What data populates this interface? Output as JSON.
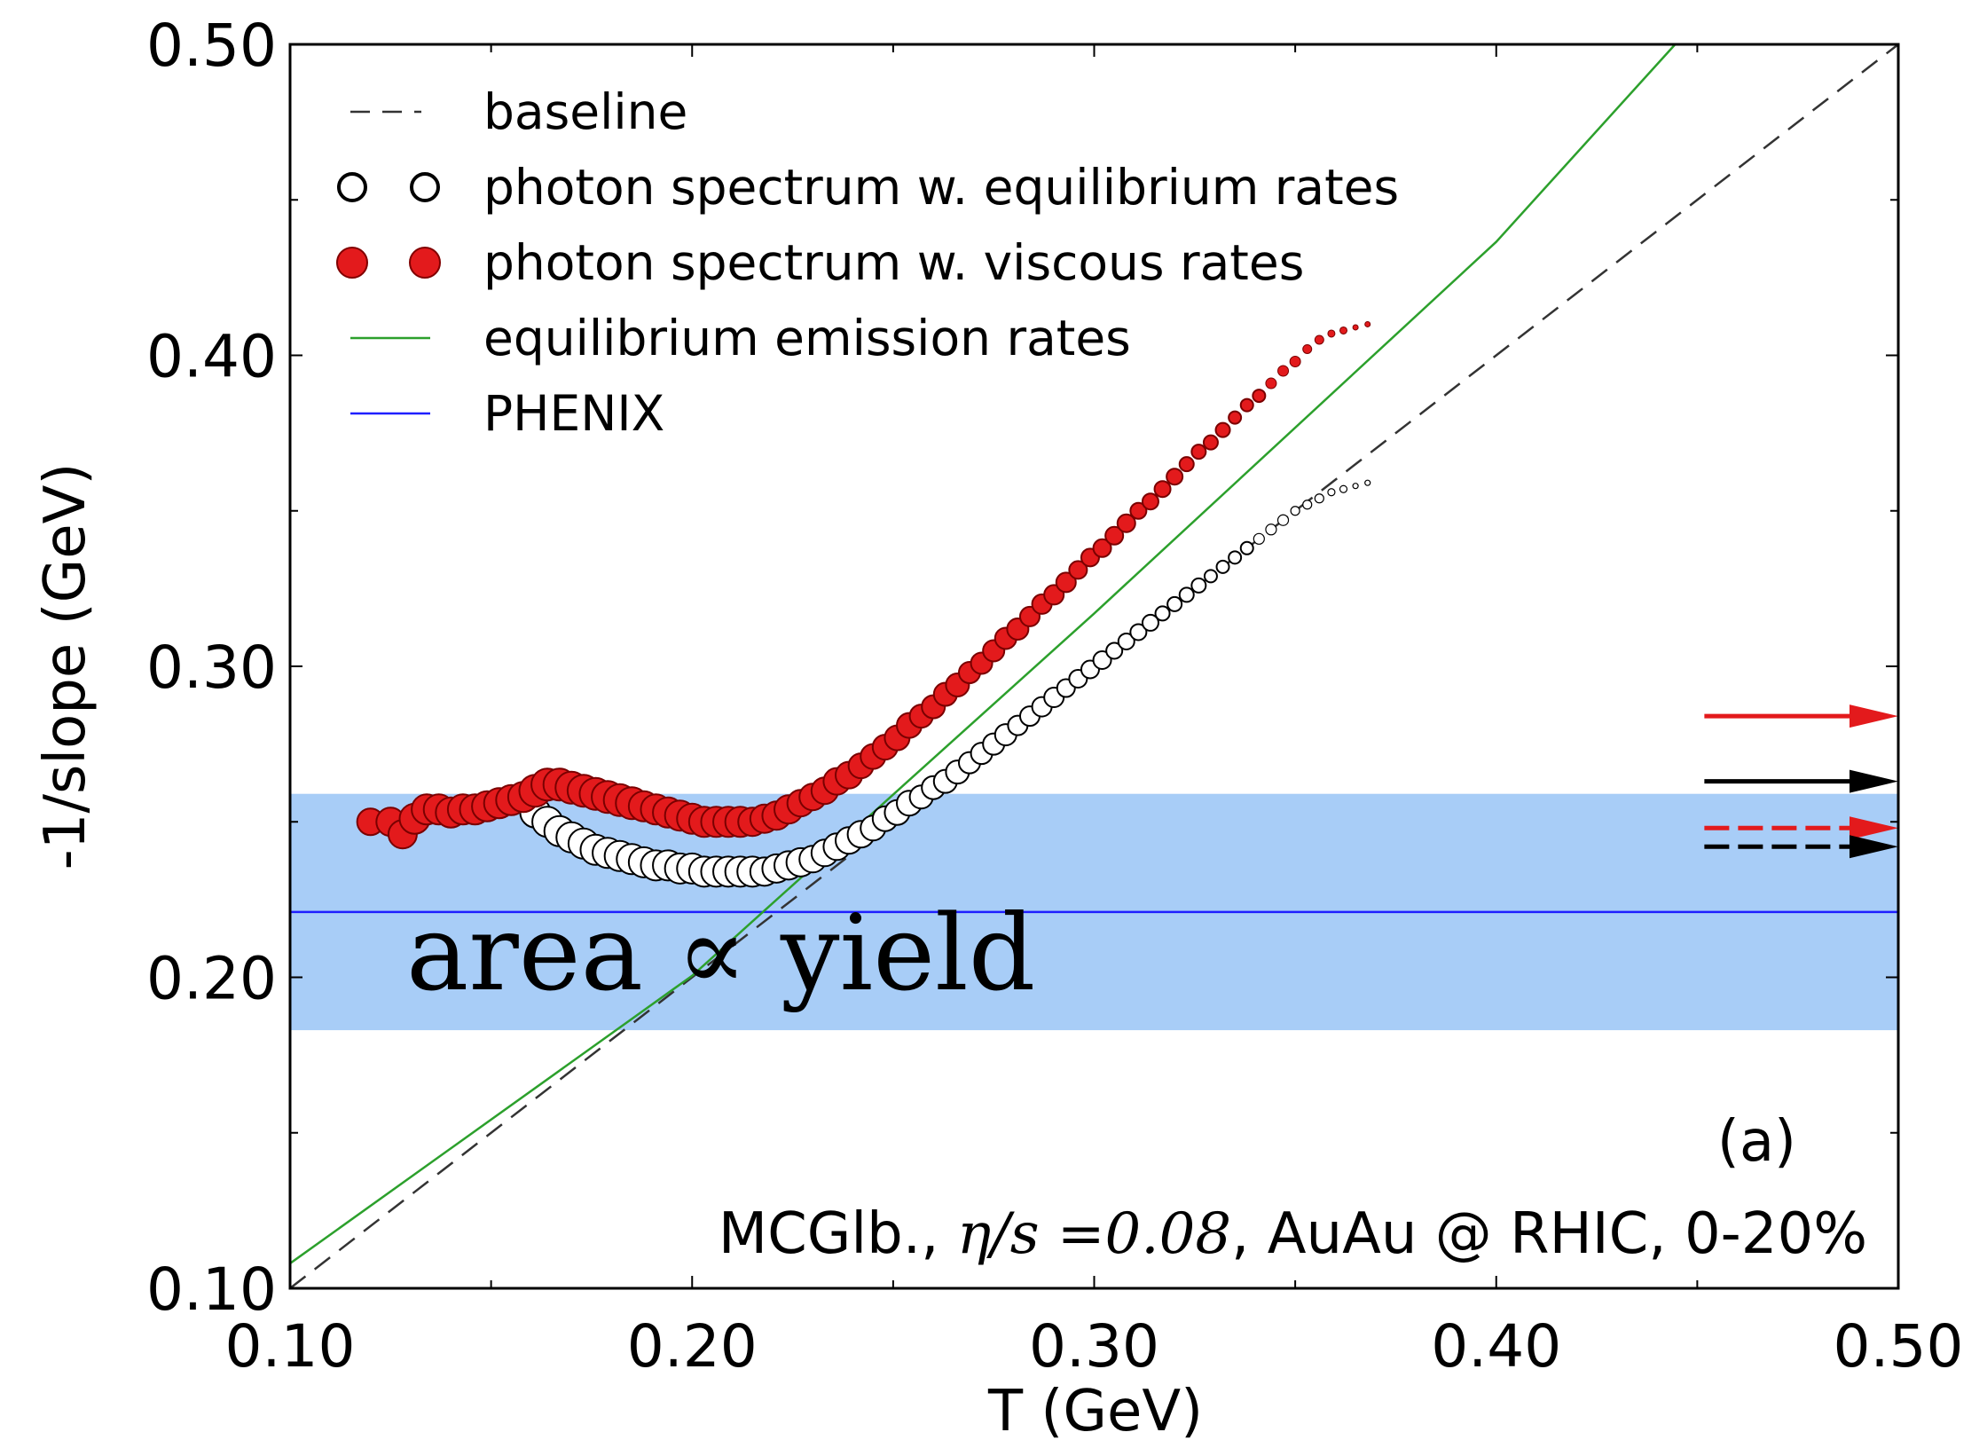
{
  "chart_data": {
    "type": "scatter",
    "xlabel": "T (GeV)",
    "ylabel": "-1/slope (GeV)",
    "xlim": [
      0.1,
      0.5
    ],
    "ylim": [
      0.1,
      0.5
    ],
    "x_ticks": [
      "0.10",
      "0.20",
      "0.30",
      "0.40",
      "0.50"
    ],
    "y_ticks": [
      "0.10",
      "0.20",
      "0.30",
      "0.40",
      "0.50"
    ],
    "annotation_text": "area ∝ yield",
    "panel_label": "(a)",
    "caption": {
      "prefix": "MCGlb., ",
      "math": "η/s =0.08",
      "suffix": ", AuAu @ RHIC, 0-20%"
    },
    "legend": {
      "position": "top-left",
      "entries": [
        {
          "label": "baseline",
          "style": "dashed-line",
          "color": "#000000"
        },
        {
          "label": "photon spectrum w. equilibrium rates",
          "style": "open-circles",
          "color": "#000000"
        },
        {
          "label": "photon spectrum w. viscous rates",
          "style": "filled-circles",
          "color": "#e31a1c"
        },
        {
          "label": "equilibrium emission rates",
          "style": "line",
          "color": "#2ca02c"
        },
        {
          "label": "PHENIX",
          "style": "line",
          "color": "#1f1fff"
        }
      ]
    },
    "phenix": {
      "value": 0.221,
      "band": [
        0.183,
        0.259
      ],
      "band_color": "#a8cdf7",
      "line_color": "#1f1fff"
    },
    "baseline": {
      "x": [
        0.1,
        0.5
      ],
      "y": [
        0.1,
        0.5
      ]
    },
    "equilibrium_emission_rates": {
      "x": [
        0.1,
        0.2,
        0.3,
        0.4,
        0.4445
      ],
      "y": [
        0.108,
        0.2005,
        0.317,
        0.4365,
        0.5
      ]
    },
    "series": [
      {
        "name": "photon spectrum w. viscous rates",
        "marker": "filled-circle",
        "color": "#e31a1c",
        "x": [
          0.12,
          0.125,
          0.128,
          0.131,
          0.134,
          0.137,
          0.14,
          0.143,
          0.146,
          0.149,
          0.152,
          0.155,
          0.158,
          0.161,
          0.164,
          0.167,
          0.17,
          0.173,
          0.176,
          0.179,
          0.182,
          0.185,
          0.188,
          0.191,
          0.194,
          0.197,
          0.2,
          0.203,
          0.206,
          0.209,
          0.212,
          0.215,
          0.218,
          0.221,
          0.224,
          0.227,
          0.23,
          0.233,
          0.236,
          0.239,
          0.242,
          0.245,
          0.248,
          0.251,
          0.254,
          0.257,
          0.26,
          0.263,
          0.266,
          0.269,
          0.272,
          0.275,
          0.278,
          0.281,
          0.284,
          0.287,
          0.29,
          0.293,
          0.296,
          0.299,
          0.302,
          0.305,
          0.308,
          0.311,
          0.314,
          0.317,
          0.32,
          0.323,
          0.326,
          0.329,
          0.332,
          0.335,
          0.338,
          0.341,
          0.344,
          0.347,
          0.35,
          0.353,
          0.356,
          0.359,
          0.362,
          0.365,
          0.368
        ],
        "y": [
          0.25,
          0.25,
          0.246,
          0.251,
          0.254,
          0.254,
          0.253,
          0.254,
          0.254,
          0.255,
          0.256,
          0.257,
          0.258,
          0.26,
          0.262,
          0.262,
          0.261,
          0.26,
          0.259,
          0.258,
          0.257,
          0.256,
          0.255,
          0.254,
          0.253,
          0.252,
          0.251,
          0.25,
          0.25,
          0.25,
          0.25,
          0.25,
          0.251,
          0.252,
          0.254,
          0.256,
          0.258,
          0.26,
          0.263,
          0.265,
          0.268,
          0.271,
          0.274,
          0.277,
          0.281,
          0.284,
          0.287,
          0.291,
          0.294,
          0.298,
          0.301,
          0.305,
          0.309,
          0.312,
          0.316,
          0.32,
          0.323,
          0.327,
          0.331,
          0.335,
          0.338,
          0.342,
          0.346,
          0.35,
          0.353,
          0.357,
          0.361,
          0.365,
          0.369,
          0.372,
          0.376,
          0.38,
          0.384,
          0.387,
          0.391,
          0.395,
          0.398,
          0.402,
          0.405,
          0.407,
          0.408,
          0.409,
          0.41
        ],
        "sizes": [
          15,
          16,
          16,
          17,
          17,
          17,
          17,
          17,
          17,
          17,
          17,
          17,
          17,
          18,
          18,
          18,
          18,
          18,
          18,
          18,
          18,
          18,
          17,
          17,
          17,
          17,
          17,
          17,
          17,
          17,
          17,
          16,
          16,
          16,
          16,
          15,
          15,
          15,
          15,
          15,
          14,
          14,
          14,
          14,
          14,
          13,
          13,
          13,
          13,
          12,
          12,
          12,
          12,
          12,
          11,
          11,
          11,
          11,
          10,
          10,
          10,
          10,
          10,
          9,
          9,
          9,
          9,
          8,
          8,
          8,
          8,
          7,
          7,
          7,
          6,
          6,
          6,
          5,
          5,
          4,
          4,
          3,
          3
        ]
      },
      {
        "name": "photon spectrum w. equilibrium rates",
        "marker": "open-circle",
        "color": "#000000",
        "x": [
          0.158,
          0.161,
          0.164,
          0.167,
          0.17,
          0.173,
          0.176,
          0.179,
          0.182,
          0.185,
          0.188,
          0.191,
          0.194,
          0.197,
          0.2,
          0.203,
          0.206,
          0.209,
          0.212,
          0.215,
          0.218,
          0.221,
          0.224,
          0.227,
          0.23,
          0.233,
          0.236,
          0.239,
          0.242,
          0.245,
          0.248,
          0.251,
          0.254,
          0.257,
          0.26,
          0.263,
          0.266,
          0.269,
          0.272,
          0.275,
          0.278,
          0.281,
          0.284,
          0.287,
          0.29,
          0.293,
          0.296,
          0.299,
          0.302,
          0.305,
          0.308,
          0.311,
          0.314,
          0.317,
          0.32,
          0.323,
          0.326,
          0.329,
          0.332,
          0.335,
          0.338,
          0.341,
          0.344,
          0.347,
          0.35,
          0.353,
          0.356,
          0.359,
          0.362,
          0.365,
          0.368
        ],
        "y": [
          0.258,
          0.253,
          0.25,
          0.247,
          0.245,
          0.243,
          0.241,
          0.24,
          0.239,
          0.238,
          0.237,
          0.236,
          0.236,
          0.235,
          0.235,
          0.234,
          0.234,
          0.234,
          0.234,
          0.234,
          0.234,
          0.235,
          0.236,
          0.237,
          0.238,
          0.24,
          0.242,
          0.244,
          0.246,
          0.248,
          0.251,
          0.253,
          0.256,
          0.258,
          0.261,
          0.263,
          0.266,
          0.269,
          0.272,
          0.275,
          0.278,
          0.281,
          0.284,
          0.287,
          0.29,
          0.293,
          0.296,
          0.299,
          0.302,
          0.305,
          0.308,
          0.311,
          0.314,
          0.317,
          0.32,
          0.323,
          0.326,
          0.329,
          0.332,
          0.335,
          0.338,
          0.341,
          0.344,
          0.347,
          0.35,
          0.352,
          0.354,
          0.356,
          0.357,
          0.358,
          0.359
        ],
        "sizes": [
          16,
          17,
          17,
          17,
          17,
          17,
          17,
          17,
          17,
          17,
          17,
          17,
          17,
          17,
          17,
          17,
          17,
          17,
          17,
          17,
          16,
          16,
          16,
          16,
          15,
          15,
          15,
          15,
          15,
          14,
          14,
          14,
          14,
          13,
          13,
          13,
          13,
          12,
          12,
          12,
          12,
          11,
          11,
          11,
          11,
          10,
          10,
          10,
          10,
          9,
          9,
          9,
          9,
          8,
          8,
          8,
          8,
          7,
          7,
          7,
          7,
          6,
          6,
          6,
          5,
          5,
          5,
          4,
          4,
          3,
          3
        ]
      }
    ],
    "arrows": [
      {
        "name": "red-solid-arrow",
        "y": 0.284,
        "color": "#e31a1c",
        "style": "solid"
      },
      {
        "name": "black-solid-arrow",
        "y": 0.263,
        "color": "#000000",
        "style": "solid"
      },
      {
        "name": "red-dashed-arrow",
        "y": 0.248,
        "color": "#e31a1c",
        "style": "dashed"
      },
      {
        "name": "black-dashed-arrow",
        "y": 0.242,
        "color": "#000000",
        "style": "dashed"
      }
    ],
    "arrow_x_range": [
      0.45,
      0.5
    ]
  }
}
